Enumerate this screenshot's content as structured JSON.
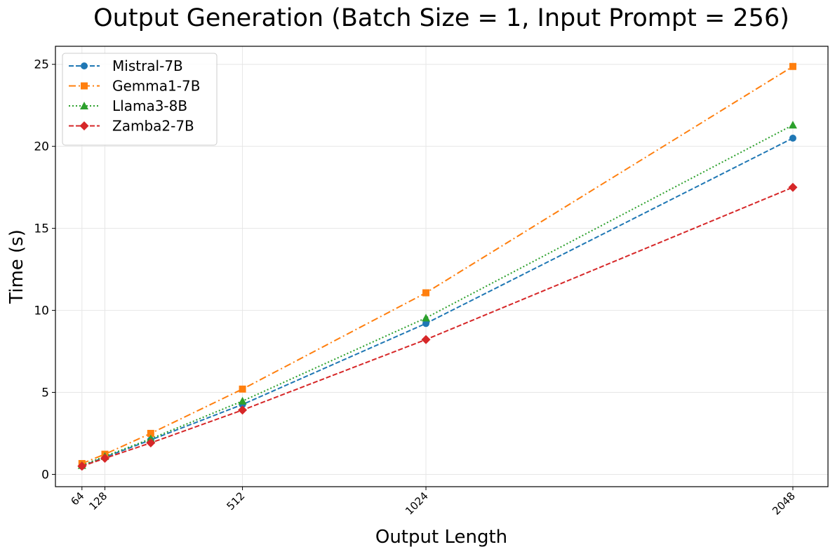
{
  "chart_data": {
    "type": "line",
    "title": "Output Generation (Batch Size = 1, Input Prompt = 256)",
    "xlabel": "Output Length",
    "ylabel": "Time (s)",
    "x": [
      64,
      128,
      256,
      512,
      1024,
      2048
    ],
    "xticks": [
      64,
      128,
      512,
      1024,
      2048
    ],
    "xlim": [
      -10,
      2146
    ],
    "yticks": [
      0,
      5,
      10,
      15,
      20,
      25
    ],
    "ylim": [
      -0.75,
      26.1
    ],
    "grid": true,
    "legend_position": "top-left",
    "series": [
      {
        "name": "Mistral-7B",
        "color": "#1f77b4",
        "marker": "circle",
        "dash": "dashed",
        "values": [
          0.5,
          1.05,
          2.1,
          4.26,
          9.2,
          20.5
        ]
      },
      {
        "name": "Gemma1-7B",
        "color": "#ff7f0e",
        "marker": "square",
        "dash": "dashdot",
        "values": [
          0.66,
          1.23,
          2.5,
          5.2,
          11.07,
          24.87
        ]
      },
      {
        "name": "Llama3-8B",
        "color": "#2ca02c",
        "marker": "triangle",
        "dash": "dotted",
        "values": [
          0.55,
          1.1,
          2.17,
          4.47,
          9.54,
          21.3
        ]
      },
      {
        "name": "Zamba2-7B",
        "color": "#d62728",
        "marker": "diamond",
        "dash": "dashed",
        "values": [
          0.5,
          0.98,
          1.92,
          3.92,
          8.22,
          17.5
        ]
      }
    ]
  }
}
